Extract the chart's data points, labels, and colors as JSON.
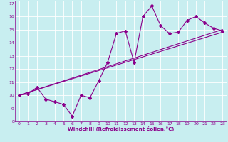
{
  "title": "",
  "xlabel": "Windchill (Refroidissement éolien,°C)",
  "ylabel": "",
  "bg_color": "#c8eef0",
  "line_color": "#8b008b",
  "grid_color": "#ffffff",
  "xlim": [
    -0.5,
    23.5
  ],
  "ylim": [
    8,
    17.2
  ],
  "xticks": [
    0,
    1,
    2,
    3,
    4,
    5,
    6,
    7,
    8,
    9,
    10,
    11,
    12,
    13,
    14,
    15,
    16,
    17,
    18,
    19,
    20,
    21,
    22,
    23
  ],
  "yticks": [
    8,
    9,
    10,
    11,
    12,
    13,
    14,
    15,
    16,
    17
  ],
  "line1_x": [
    0,
    1,
    2,
    3,
    4,
    5,
    6,
    7,
    8,
    9,
    10,
    11,
    12,
    13,
    14,
    15,
    16,
    17,
    18,
    19,
    20,
    21,
    22,
    23
  ],
  "line1_y": [
    10.0,
    10.1,
    10.6,
    9.7,
    9.5,
    9.3,
    8.4,
    10.0,
    9.8,
    11.1,
    12.5,
    14.7,
    14.9,
    12.5,
    16.0,
    16.8,
    15.3,
    14.7,
    14.8,
    15.7,
    16.0,
    15.5,
    15.1,
    14.9
  ],
  "line2_x": [
    0,
    23
  ],
  "line2_y": [
    10.0,
    15.0
  ],
  "line3_x": [
    0,
    23
  ],
  "line3_y": [
    10.0,
    14.8
  ]
}
